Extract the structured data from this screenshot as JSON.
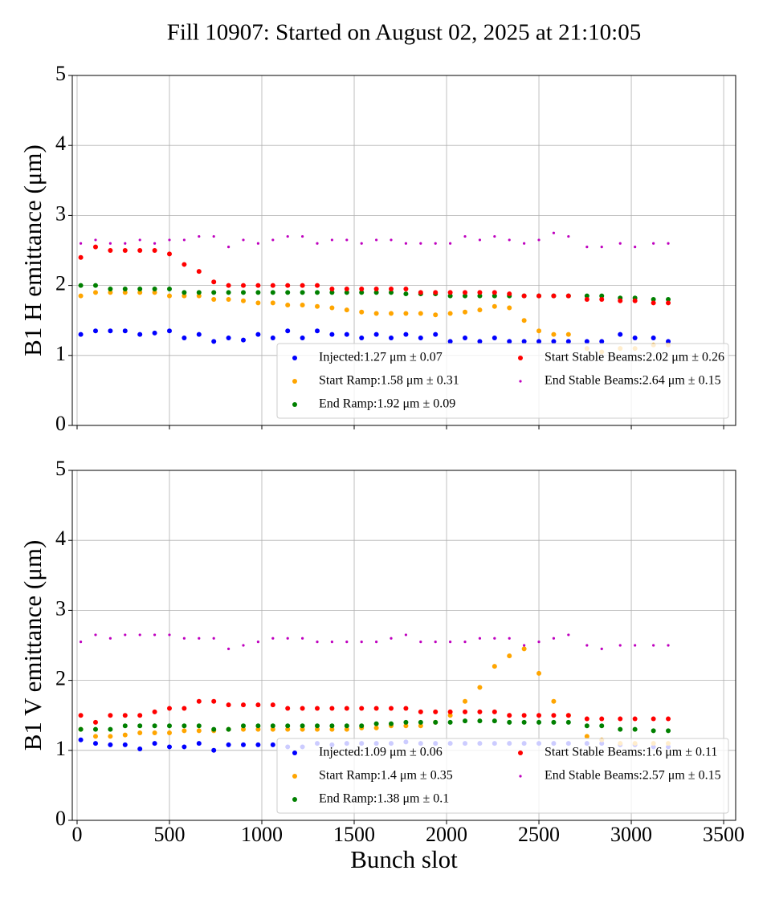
{
  "chart_data": [
    {
      "type": "scatter",
      "title": "Fill 10907: Started on August 02, 2025 at 21:10:05",
      "ylabel": "B1 H emittance (μm)",
      "xlim": [
        -26,
        3565
      ],
      "ylim": [
        0,
        5
      ],
      "xticks": [
        0,
        500,
        1000,
        1500,
        2000,
        2500,
        3000,
        3500
      ],
      "yticks": [
        0,
        1,
        2,
        3,
        4,
        5
      ],
      "xticklabels": false,
      "grid": true,
      "legend": "lower right",
      "legend_columns": 2,
      "x": [
        20,
        100,
        180,
        260,
        340,
        420,
        500,
        580,
        660,
        740,
        820,
        900,
        980,
        1060,
        1140,
        1220,
        1300,
        1380,
        1460,
        1540,
        1620,
        1700,
        1780,
        1860,
        1940,
        2020,
        2100,
        2180,
        2260,
        2340,
        2420,
        2500,
        2580,
        2660,
        2760,
        2840,
        2940,
        3020,
        3120,
        3200
      ],
      "series": [
        {
          "name": "Injected:1.27 μm ± 0.07",
          "color": "#0000ff",
          "marker_size": 3,
          "values": [
            1.3,
            1.35,
            1.35,
            1.35,
            1.3,
            1.32,
            1.35,
            1.25,
            1.3,
            1.2,
            1.25,
            1.22,
            1.3,
            1.25,
            1.35,
            1.25,
            1.35,
            1.3,
            1.3,
            1.25,
            1.3,
            1.25,
            1.3,
            1.25,
            1.3,
            1.2,
            1.25,
            1.2,
            1.25,
            1.2,
            1.2,
            1.2,
            1.2,
            1.2,
            1.2,
            1.2,
            1.3,
            1.25,
            1.25,
            1.2
          ]
        },
        {
          "name": "Start Ramp:1.58 μm ± 0.31",
          "color": "#ffa500",
          "marker_size": 3,
          "values": [
            1.85,
            1.9,
            1.9,
            1.9,
            1.9,
            1.9,
            1.85,
            1.85,
            1.85,
            1.8,
            1.8,
            1.78,
            1.75,
            1.75,
            1.72,
            1.72,
            1.7,
            1.68,
            1.65,
            1.62,
            1.6,
            1.6,
            1.6,
            1.6,
            1.58,
            1.6,
            1.62,
            1.65,
            1.7,
            1.68,
            1.5,
            1.35,
            1.3,
            1.3,
            1.1,
            1.05,
            1.1,
            1.1,
            1.15,
            1.15
          ]
        },
        {
          "name": "End Ramp:1.92 μm ± 0.09",
          "color": "#008000",
          "marker_size": 3,
          "values": [
            2.0,
            2.0,
            1.95,
            1.95,
            1.95,
            1.95,
            1.95,
            1.9,
            1.9,
            1.9,
            1.9,
            1.9,
            1.9,
            1.9,
            1.9,
            1.9,
            1.9,
            1.9,
            1.9,
            1.9,
            1.9,
            1.9,
            1.88,
            1.88,
            1.88,
            1.85,
            1.85,
            1.85,
            1.85,
            1.85,
            1.85,
            1.85,
            1.85,
            1.85,
            1.85,
            1.85,
            1.82,
            1.82,
            1.8,
            1.8
          ]
        },
        {
          "name": "Start Stable Beams:2.02 μm ± 0.26",
          "color": "#ff0000",
          "marker_size": 3,
          "values": [
            2.4,
            2.55,
            2.5,
            2.5,
            2.5,
            2.5,
            2.45,
            2.3,
            2.2,
            2.05,
            2.0,
            2.0,
            2.0,
            2.0,
            2.0,
            2.0,
            2.0,
            1.95,
            1.95,
            1.95,
            1.95,
            1.95,
            1.95,
            1.9,
            1.9,
            1.9,
            1.9,
            1.9,
            1.9,
            1.88,
            1.85,
            1.85,
            1.85,
            1.85,
            1.8,
            1.8,
            1.78,
            1.78,
            1.75,
            1.75
          ]
        },
        {
          "name": "End Stable Beams:2.64 μm ± 0.15",
          "color": "#bf00bf",
          "marker_size": 1.6,
          "values": [
            2.6,
            2.65,
            2.6,
            2.6,
            2.65,
            2.6,
            2.65,
            2.65,
            2.7,
            2.7,
            2.55,
            2.65,
            2.6,
            2.65,
            2.7,
            2.7,
            2.6,
            2.65,
            2.65,
            2.6,
            2.65,
            2.65,
            2.6,
            2.6,
            2.6,
            2.6,
            2.7,
            2.65,
            2.7,
            2.65,
            2.6,
            2.65,
            2.75,
            2.7,
            2.55,
            2.55,
            2.6,
            2.55,
            2.6,
            2.6
          ]
        }
      ]
    },
    {
      "type": "scatter",
      "ylabel": "B1 V emittance (μm)",
      "xlabel": "Bunch slot",
      "xlim": [
        -26,
        3565
      ],
      "ylim": [
        0,
        5
      ],
      "xticks": [
        0,
        500,
        1000,
        1500,
        2000,
        2500,
        3000,
        3500
      ],
      "yticks": [
        0,
        1,
        2,
        3,
        4,
        5
      ],
      "xticklabels": true,
      "grid": true,
      "legend": "lower right",
      "legend_columns": 2,
      "x": [
        20,
        100,
        180,
        260,
        340,
        420,
        500,
        580,
        660,
        740,
        820,
        900,
        980,
        1060,
        1140,
        1220,
        1300,
        1380,
        1460,
        1540,
        1620,
        1700,
        1780,
        1860,
        1940,
        2020,
        2100,
        2180,
        2260,
        2340,
        2420,
        2500,
        2580,
        2660,
        2760,
        2840,
        2940,
        3020,
        3120,
        3200
      ],
      "series": [
        {
          "name": "Injected:1.09 μm ± 0.06",
          "color": "#0000ff",
          "marker_size": 3,
          "values": [
            1.15,
            1.1,
            1.08,
            1.08,
            1.02,
            1.1,
            1.05,
            1.05,
            1.1,
            1.0,
            1.08,
            1.08,
            1.08,
            1.08,
            1.05,
            1.05,
            1.1,
            1.08,
            1.1,
            1.1,
            1.1,
            1.1,
            1.12,
            1.1,
            1.1,
            1.1,
            1.1,
            1.1,
            1.1,
            1.1,
            1.1,
            1.1,
            1.1,
            1.1,
            1.1,
            1.1,
            1.08,
            1.08,
            1.05,
            1.05
          ]
        },
        {
          "name": "Start Ramp:1.4 μm ± 0.35",
          "color": "#ffa500",
          "marker_size": 3,
          "values": [
            1.3,
            1.2,
            1.2,
            1.22,
            1.25,
            1.25,
            1.25,
            1.28,
            1.28,
            1.28,
            1.3,
            1.3,
            1.3,
            1.3,
            1.3,
            1.3,
            1.3,
            1.3,
            1.3,
            1.32,
            1.32,
            1.35,
            1.35,
            1.35,
            1.4,
            1.5,
            1.7,
            1.9,
            2.2,
            2.35,
            2.45,
            2.1,
            1.7,
            1.5,
            1.2,
            1.15,
            1.1,
            1.1,
            1.1,
            1.1
          ]
        },
        {
          "name": "End Ramp:1.38 μm ± 0.1",
          "color": "#008000",
          "marker_size": 3,
          "values": [
            1.3,
            1.3,
            1.3,
            1.35,
            1.35,
            1.35,
            1.35,
            1.35,
            1.35,
            1.3,
            1.3,
            1.35,
            1.35,
            1.35,
            1.35,
            1.35,
            1.35,
            1.35,
            1.35,
            1.35,
            1.38,
            1.38,
            1.4,
            1.4,
            1.4,
            1.4,
            1.42,
            1.42,
            1.42,
            1.4,
            1.4,
            1.4,
            1.4,
            1.4,
            1.35,
            1.35,
            1.3,
            1.3,
            1.28,
            1.28
          ]
        },
        {
          "name": "Start Stable Beams:1.6 μm ± 0.11",
          "color": "#ff0000",
          "marker_size": 3,
          "values": [
            1.5,
            1.4,
            1.5,
            1.5,
            1.5,
            1.55,
            1.6,
            1.6,
            1.7,
            1.7,
            1.65,
            1.65,
            1.65,
            1.65,
            1.6,
            1.6,
            1.6,
            1.6,
            1.6,
            1.6,
            1.6,
            1.6,
            1.6,
            1.55,
            1.55,
            1.55,
            1.55,
            1.55,
            1.55,
            1.5,
            1.5,
            1.5,
            1.5,
            1.5,
            1.45,
            1.45,
            1.45,
            1.45,
            1.45,
            1.45
          ]
        },
        {
          "name": "End Stable Beams:2.57 μm ± 0.15",
          "color": "#bf00bf",
          "marker_size": 1.6,
          "values": [
            2.55,
            2.65,
            2.6,
            2.65,
            2.65,
            2.65,
            2.65,
            2.6,
            2.6,
            2.6,
            2.45,
            2.5,
            2.55,
            2.6,
            2.6,
            2.6,
            2.55,
            2.55,
            2.55,
            2.55,
            2.55,
            2.6,
            2.65,
            2.55,
            2.55,
            2.55,
            2.55,
            2.6,
            2.6,
            2.6,
            2.5,
            2.55,
            2.6,
            2.65,
            2.5,
            2.45,
            2.5,
            2.5,
            2.5,
            2.5
          ]
        }
      ]
    }
  ]
}
